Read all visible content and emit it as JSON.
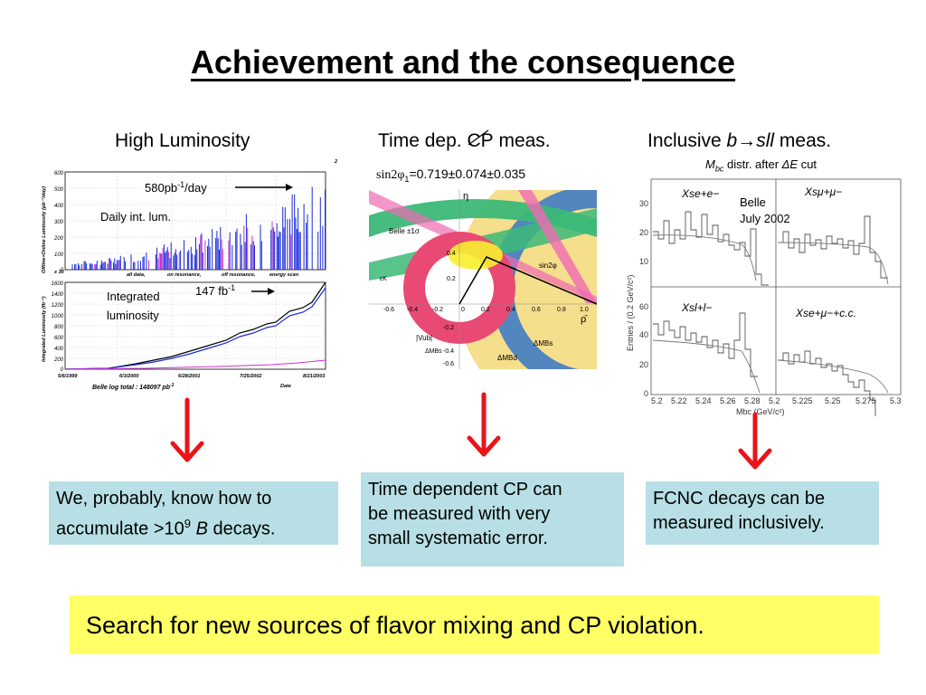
{
  "slide": {
    "title": "Achievement and the consequence",
    "columns": [
      {
        "heading": "High Luminosity"
      },
      {
        "heading_pre": "Time dep. ",
        "heading_cp": "CP",
        "heading_post": " meas."
      },
      {
        "heading_pre": "Inclusive ",
        "heading_b": "b",
        "heading_arrow": "→",
        "heading_sll": "sll",
        "heading_post": " meas."
      }
    ],
    "luminosity": {
      "label_peak": "580pb",
      "label_peak_sup": "-1",
      "label_peak_suffix": "/day",
      "label_daily": "Daily int. lum.",
      "label_integrated_1": "Integrated",
      "label_integrated_2": "luminosity",
      "label_total": "147 fb",
      "label_total_sup": "-1",
      "top_y_label": "Offline+Online Luminosity (pb⁻¹/day)",
      "top_y_ticks": [
        "600",
        "500",
        "400",
        "300",
        "200",
        "100",
        "0"
      ],
      "top_legend": [
        "all data,",
        "on resonance,",
        "off resonance,",
        "energy scan"
      ],
      "bottom_y_label": "Integrated Luminosity (fb⁻¹)",
      "bottom_y_ticks": [
        "1600",
        "1400",
        "1200",
        "1000",
        "800",
        "600",
        "400",
        "200",
        "0"
      ],
      "bottom_x_ticks": [
        "5/6/1999",
        "6/3/2000",
        "6/28/2001",
        "7/25/2002",
        "8/21/2003"
      ],
      "bottom_x_label": "Date",
      "log_total": "Belle log total : 148097 pb",
      "log_total_sup": "-1",
      "page_mark": "2",
      "exp_mark": "x 10"
    },
    "cp": {
      "value_prefix": "sin2φ",
      "value_sub": "1",
      "value_rest": "=0.719±0.074±0.035",
      "eta": "η",
      "rho": "ρ̄",
      "belle_label": "Belle ±1σ",
      "sin2phi_label": "sin2φ",
      "eps_label": "εK",
      "vub_label": "|Vub|",
      "dmbs_label": "ΔMBs",
      "dmbd_label": "ΔMBd",
      "dmbs2_label": "ΔMBs",
      "x_ticks": [
        "-0.6",
        "-0.4",
        "-0.2",
        "0",
        "0.2",
        "0.4",
        "0.6",
        "0.8",
        "1.0"
      ],
      "y_ticks": [
        "0.4",
        "0.2",
        "-0.2",
        "-0.4",
        "-0.6"
      ]
    },
    "inclusive": {
      "subtitle_m": "M",
      "subtitle_bc": "bc",
      "subtitle_rest": " distr. after ",
      "subtitle_de": "ΔE",
      "subtitle_cut": " cut",
      "belle": "Belle",
      "date": "July 2002",
      "panel_labels": [
        "Xse+e−",
        "Xsμ+μ−",
        "Xsl+l−",
        "Xse+μ−+c.c."
      ],
      "y_label": "Entries / (0.2 GeV/c²)",
      "x_label": "Mbc (GeV/c²)",
      "y_ticks_top": [
        "30",
        "20",
        "10"
      ],
      "y_ticks_bottom": [
        "60",
        "40",
        "20",
        "0"
      ],
      "x_ticks_left": [
        "5.2",
        "5.22",
        "5.24",
        "5.26",
        "5.28"
      ],
      "x_ticks_right": [
        "5.2",
        "5.225",
        "5.25",
        "5.275",
        "5.3"
      ]
    },
    "boxes": [
      {
        "line1": "We, probably, know how to",
        "line2_pre": "accumulate >10",
        "line2_sup": "9",
        "line2_b": "B",
        "line2_post": " decays."
      },
      {
        "line1": "Time dependent CP can",
        "line2": "be measured with very",
        "line3": "small systematic error."
      },
      {
        "line1": "FCNC decays can be",
        "line2": "measured inclusively."
      }
    ],
    "conclusion": "Search for new sources of flavor mixing and CP violation.",
    "colors": {
      "arrow": "#e8141a",
      "box": "#b7dfe5",
      "conclusion_bg": "#ffff66"
    }
  }
}
